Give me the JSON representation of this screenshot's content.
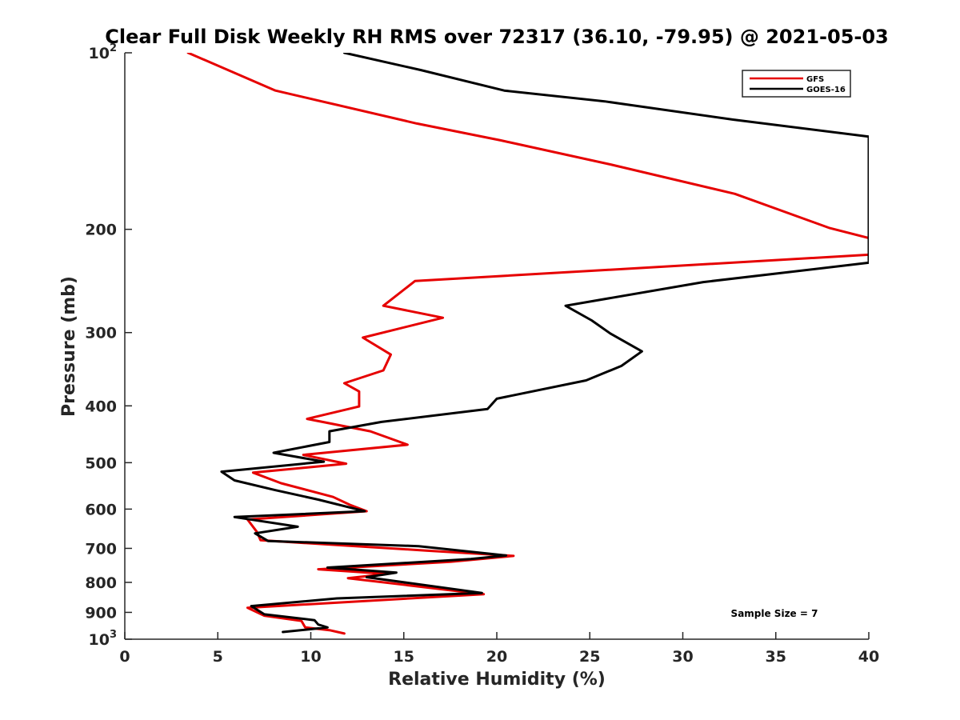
{
  "chart_data": {
    "type": "line",
    "title": "Clear Full Disk Weekly RH RMS over 72317 (36.10, -79.95) @ 2021-05-03",
    "xlabel": "Relative Humidity (%)",
    "ylabel": "Pressure (mb)",
    "xlim": [
      0,
      40
    ],
    "ylim": [
      1000,
      100
    ],
    "yscale": "log",
    "x_ticks": [
      "0",
      "5",
      "10",
      "15",
      "20",
      "25",
      "30",
      "35",
      "40"
    ],
    "y_ticks": [
      {
        "value": 100,
        "label": "10",
        "sup": "2"
      },
      {
        "value": 200,
        "label": "200"
      },
      {
        "value": 300,
        "label": "300"
      },
      {
        "value": 400,
        "label": "400"
      },
      {
        "value": 500,
        "label": "500"
      },
      {
        "value": 600,
        "label": "600"
      },
      {
        "value": 700,
        "label": "700"
      },
      {
        "value": 800,
        "label": "800"
      },
      {
        "value": 900,
        "label": "900"
      },
      {
        "value": 1000,
        "label": "10",
        "sup": "3"
      }
    ],
    "legend_position": "top-right",
    "annotation": "Sample Size = 7",
    "series": [
      {
        "name": "GFS",
        "color": "#e60000",
        "points": [
          [
            3.4,
            100
          ],
          [
            8.1,
            116
          ],
          [
            15.7,
            132
          ],
          [
            20.2,
            141
          ],
          [
            26.1,
            155
          ],
          [
            32.8,
            174
          ],
          [
            37.9,
            199
          ],
          [
            40.0,
            207
          ],
          [
            40.0,
            221
          ],
          [
            15.6,
            245
          ],
          [
            13.9,
            270
          ],
          [
            17.1,
            283
          ],
          [
            12.8,
            306
          ],
          [
            14.3,
            327
          ],
          [
            13.9,
            348
          ],
          [
            11.8,
            366
          ],
          [
            12.6,
            378
          ],
          [
            12.6,
            401
          ],
          [
            9.8,
            421
          ],
          [
            13.2,
            442
          ],
          [
            15.2,
            466
          ],
          [
            9.6,
            485
          ],
          [
            11.9,
            502
          ],
          [
            6.9,
            520
          ],
          [
            8.4,
            542
          ],
          [
            11.2,
            572
          ],
          [
            12.1,
            590
          ],
          [
            13.0,
            605
          ],
          [
            6.6,
            625
          ],
          [
            7.1,
            656
          ],
          [
            7.3,
            678
          ],
          [
            16.2,
            706
          ],
          [
            20.9,
            721
          ],
          [
            17.5,
            738
          ],
          [
            10.4,
            760
          ],
          [
            14.1,
            774
          ],
          [
            12.0,
            787
          ],
          [
            19.3,
            838
          ],
          [
            6.6,
            884
          ],
          [
            7.5,
            912
          ],
          [
            9.5,
            931
          ],
          [
            9.7,
            955
          ],
          [
            11.0,
            965
          ],
          [
            11.8,
            978
          ]
        ]
      },
      {
        "name": "GOES-16",
        "color": "#000000",
        "points": [
          [
            11.8,
            100
          ],
          [
            15.9,
            107
          ],
          [
            20.4,
            116
          ],
          [
            25.8,
            121
          ],
          [
            32.7,
            130
          ],
          [
            40.0,
            139
          ],
          [
            40.0,
            228
          ],
          [
            31.1,
            246
          ],
          [
            23.7,
            270
          ],
          [
            25.1,
            286
          ],
          [
            26.1,
            301
          ],
          [
            27.8,
            323
          ],
          [
            26.7,
            342
          ],
          [
            24.8,
            362
          ],
          [
            20.0,
            389
          ],
          [
            19.5,
            405
          ],
          [
            13.8,
            426
          ],
          [
            11.0,
            442
          ],
          [
            11.0,
            461
          ],
          [
            8.0,
            481
          ],
          [
            10.7,
            498
          ],
          [
            5.2,
            518
          ],
          [
            5.9,
            536
          ],
          [
            8.1,
            557
          ],
          [
            10.4,
            578
          ],
          [
            12.9,
            605
          ],
          [
            5.9,
            619
          ],
          [
            9.3,
            643
          ],
          [
            7.0,
            660
          ],
          [
            7.7,
            680
          ],
          [
            15.8,
            694
          ],
          [
            20.5,
            720
          ],
          [
            18.6,
            730
          ],
          [
            10.9,
            755
          ],
          [
            14.6,
            770
          ],
          [
            13.0,
            784
          ],
          [
            19.2,
            834
          ],
          [
            11.4,
            852
          ],
          [
            6.8,
            878
          ],
          [
            7.5,
            907
          ],
          [
            10.2,
            928
          ],
          [
            10.4,
            944
          ],
          [
            10.9,
            955
          ],
          [
            8.5,
            972
          ]
        ]
      }
    ]
  }
}
